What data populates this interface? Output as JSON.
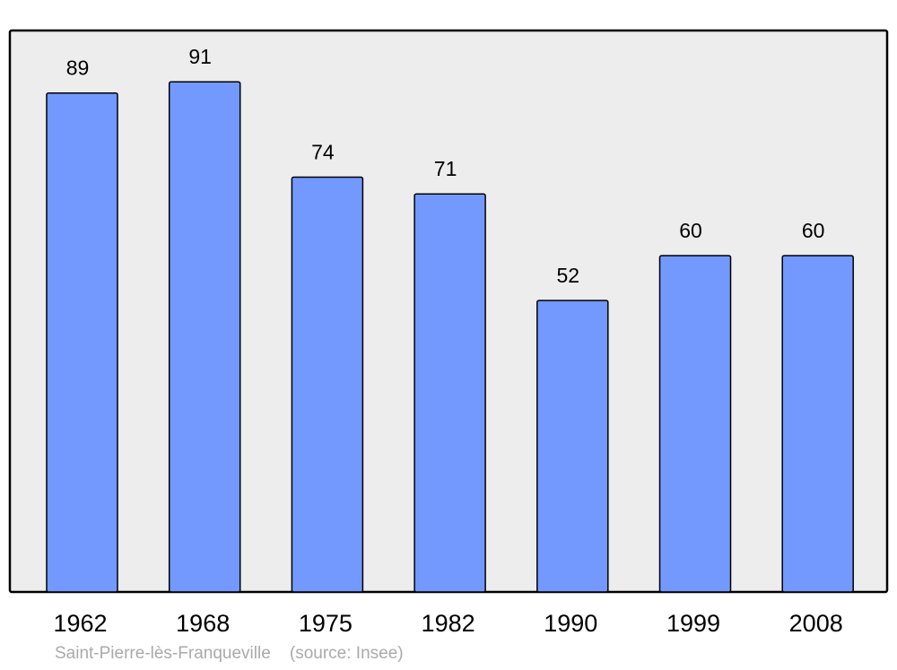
{
  "chart_data": {
    "type": "bar",
    "title": "",
    "xlabel": "",
    "ylabel": "",
    "categories": [
      "1962",
      "1968",
      "1975",
      "1982",
      "1990",
      "1999",
      "2008"
    ],
    "values": [
      89,
      91,
      74,
      71,
      52,
      60,
      60
    ],
    "ylim": [
      0,
      100
    ],
    "grid": false,
    "data_labels": true,
    "colors": {
      "bar": "#7399ff",
      "background": "#ededed",
      "border": "#000000"
    }
  },
  "caption": {
    "place": "Saint-Pierre-lès-Franqueville",
    "source": "(source: Insee)"
  }
}
